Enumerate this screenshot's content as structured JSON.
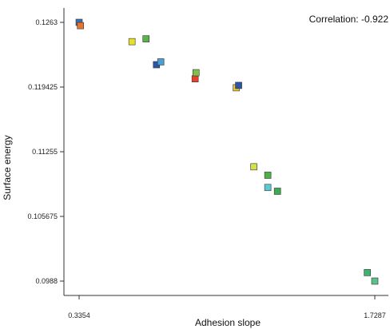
{
  "chart_data": {
    "type": "scatter",
    "title": "",
    "xlabel": "Adhesion slope",
    "ylabel": "Surface energy",
    "annotation": "Correlation: -0.922",
    "xlim": [
      0.3354,
      1.7287
    ],
    "ylim": [
      0.0988,
      0.1263
    ],
    "x_ticks": [
      {
        "value": 0.3354,
        "label": "0.3354"
      },
      {
        "value": 1.7287,
        "label": "1.7287"
      }
    ],
    "y_ticks": [
      {
        "value": 0.1263,
        "label": "0.1263"
      },
      {
        "value": 0.119425,
        "label": "0.119425"
      },
      {
        "value": 0.11255,
        "label": "0.11255"
      },
      {
        "value": 0.105675,
        "label": "0.105675"
      },
      {
        "value": 0.0988,
        "label": "0.0988"
      }
    ],
    "grid": false,
    "points": [
      {
        "x": 0.3354,
        "y": 0.1263,
        "color": "#3c6fb4"
      },
      {
        "x": 0.3417,
        "y": 0.12595,
        "color": "#e8732e"
      },
      {
        "x": 0.5845,
        "y": 0.12425,
        "color": "#e4e02c"
      },
      {
        "x": 0.6507,
        "y": 0.12455,
        "color": "#5cb24a"
      },
      {
        "x": 0.6998,
        "y": 0.1218,
        "color": "#2c55a8"
      },
      {
        "x": 0.7201,
        "y": 0.1221,
        "color": "#4a9fd4"
      },
      {
        "x": 0.882,
        "y": 0.1203,
        "color": "#e8402c"
      },
      {
        "x": 0.8862,
        "y": 0.12095,
        "color": "#7dc24a"
      },
      {
        "x": 1.0758,
        "y": 0.11935,
        "color": "#eac43a"
      },
      {
        "x": 1.0869,
        "y": 0.1196,
        "color": "#2c55a8"
      },
      {
        "x": 1.1587,
        "y": 0.11095,
        "color": "#d2e04a"
      },
      {
        "x": 1.2245,
        "y": 0.11005,
        "color": "#4fb04a"
      },
      {
        "x": 1.2245,
        "y": 0.10875,
        "color": "#5ccad2"
      },
      {
        "x": 1.27,
        "y": 0.10835,
        "color": "#3cac52"
      },
      {
        "x": 1.6934,
        "y": 0.0997,
        "color": "#3cb470"
      },
      {
        "x": 1.7287,
        "y": 0.0988,
        "color": "#5cc08a"
      }
    ]
  }
}
